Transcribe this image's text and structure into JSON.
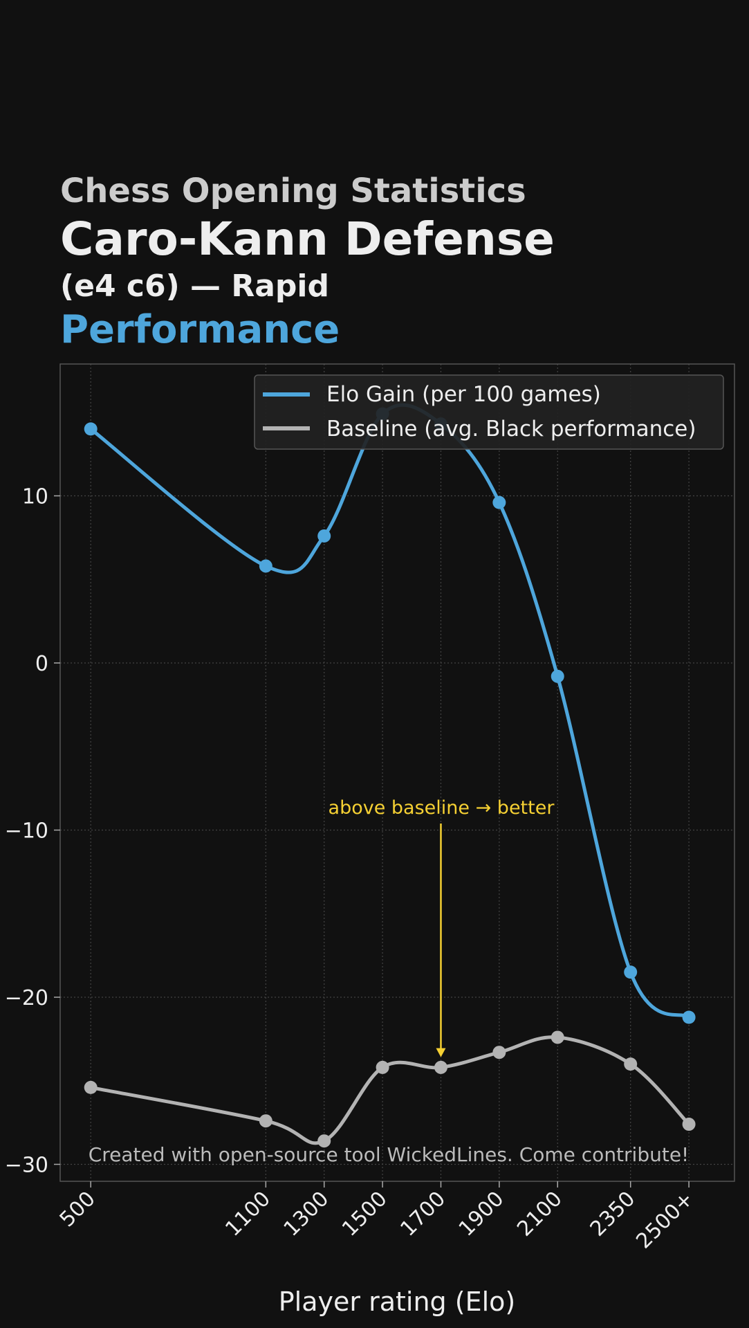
{
  "header": {
    "line1": "Chess Opening Statistics",
    "line2": "Caro-Kann Defense",
    "line3": "(e4 c6) — Rapid",
    "line4": "Performance"
  },
  "footer_note": "Created with open-source tool WickedLines. Come contribute!",
  "colors": {
    "background": "#111111",
    "elo_series": "#4ea6dc",
    "baseline_series": "#b3b3b3",
    "annotation": "#f5d033"
  },
  "chart_data": {
    "type": "line",
    "categories": [
      "500",
      "1100",
      "1300",
      "1500",
      "1700",
      "1900",
      "2100",
      "2350",
      "2500+"
    ],
    "x": [
      500,
      1100,
      1300,
      1500,
      1700,
      1900,
      2100,
      2350,
      2550
    ],
    "series": [
      {
        "name": "Elo Gain (per 100 games)",
        "values": [
          14.0,
          5.8,
          7.6,
          14.9,
          14.3,
          9.6,
          -0.8,
          -18.5,
          -21.2
        ]
      },
      {
        "name": "Baseline (avg. Black performance)",
        "values": [
          -25.4,
          -27.4,
          -28.6,
          -24.2,
          -24.2,
          -23.3,
          -22.4,
          -24.0,
          -27.6
        ]
      }
    ],
    "xlabel": "Player rating (Elo)",
    "ylabel": "",
    "xlim": [
      400,
      2500
    ],
    "ylim": [
      -31,
      18
    ],
    "yticks": [
      -30,
      -20,
      -10,
      0,
      10
    ],
    "ytick_labels": [
      "−30",
      "−20",
      "−10",
      "0",
      "10"
    ],
    "grid": true,
    "legend_position": "top-right",
    "annotation": {
      "text": "above baseline → better",
      "x": 1700,
      "y": -24.0
    }
  }
}
